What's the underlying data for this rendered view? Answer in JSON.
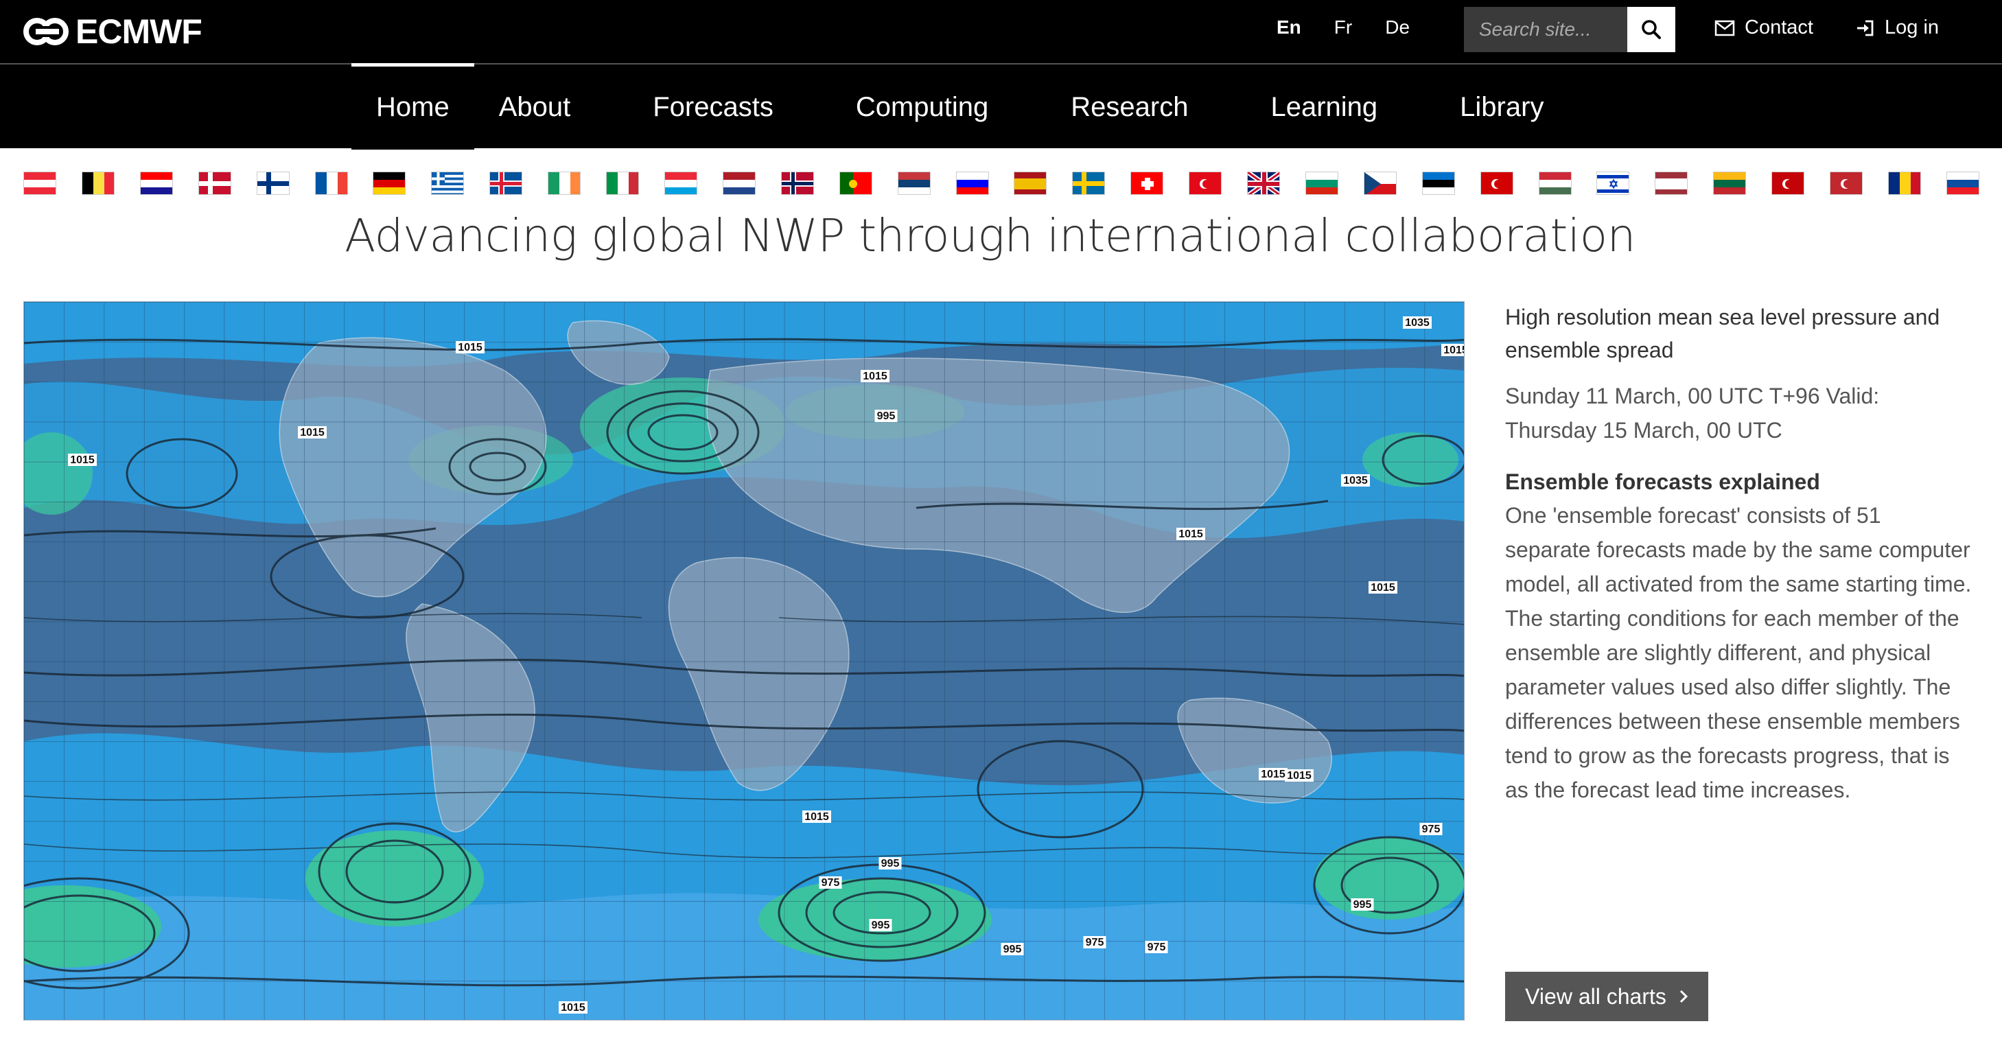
{
  "header": {
    "logo_text": "ECMWF",
    "languages": [
      {
        "label": "En",
        "active": true
      },
      {
        "label": "Fr",
        "active": false
      },
      {
        "label": "De",
        "active": false
      }
    ],
    "search": {
      "placeholder": "Search site...",
      "icon": "search-icon"
    },
    "contact_label": "Contact",
    "login_label": "Log in"
  },
  "nav": {
    "items": [
      {
        "label": "Home",
        "active": true
      },
      {
        "label": "About",
        "active": false
      },
      {
        "label": "Forecasts",
        "active": false
      },
      {
        "label": "Computing",
        "active": false
      },
      {
        "label": "Research",
        "active": false
      },
      {
        "label": "Learning",
        "active": false
      },
      {
        "label": "Library",
        "active": false
      }
    ]
  },
  "flags": [
    "austria",
    "belgium",
    "croatia",
    "denmark",
    "finland",
    "france",
    "germany",
    "greece",
    "iceland",
    "ireland",
    "italy",
    "luxembourg",
    "netherlands",
    "norway",
    "portugal",
    "serbia",
    "slovenia",
    "spain",
    "sweden",
    "switzerland",
    "turkey",
    "united-kingdom",
    "bulgaria",
    "czech-republic",
    "estonia",
    "north-macedonia",
    "hungary",
    "israel",
    "latvia",
    "lithuania",
    "montenegro",
    "morocco",
    "romania",
    "slovakia"
  ],
  "headline": "Advancing global NWP through international collaboration",
  "map": {
    "labels": [
      "1035",
      "1015",
      "1015",
      "1015",
      "995",
      "1015",
      "1015",
      "1035",
      "1015",
      "1015",
      "1015",
      "1015",
      "995",
      "975",
      "995",
      "995",
      "975",
      "975",
      "995",
      "1015",
      "1015",
      "975"
    ]
  },
  "side": {
    "chart_title": "High resolution mean sea level pressure and ensemble spread",
    "chart_subtitle": "Sunday 11 March, 00 UTC T+96 Valid: Thursday 15 March, 00 UTC",
    "explain_title": "Ensemble forecasts explained",
    "explain_body": "One 'ensemble forecast' consists of 51 separate forecasts made by the same computer model, all activated from the same starting time. The starting conditions for each member of the ensemble are slightly different, and physical parameter values used also differ slightly. The differences between these ensemble members tend to grow as the forecasts progress, that is as the forecast lead time increases.",
    "view_button": "View all charts"
  },
  "colors": {
    "bar": "#000000",
    "ocean": "#3e6f9e",
    "spread_low": "#2a9ee0",
    "spread_high": "#3cc7a0",
    "button": "#555555"
  }
}
